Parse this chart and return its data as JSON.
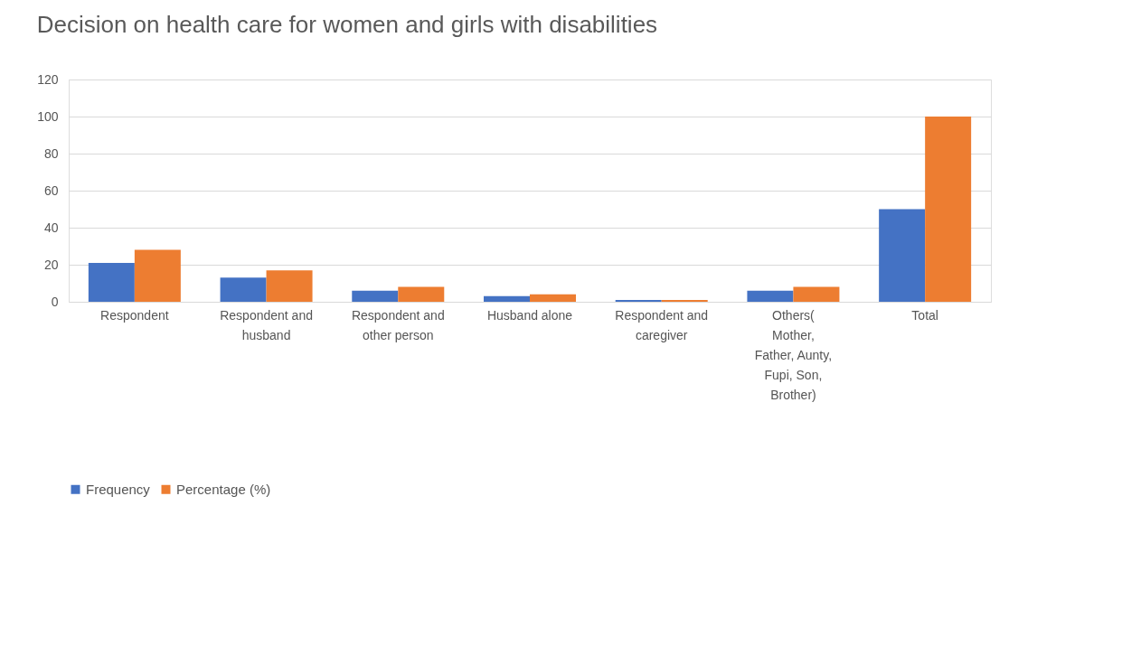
{
  "chart_data": {
    "type": "bar",
    "title": "Decision on health care for women and girls with disabilities",
    "categories": [
      "Respondent",
      "Respondent and husband",
      "Respondent and other person",
      "Husband alone",
      "Respondent and caregiver",
      "Others( Mother, Father, Aunty, Fupi, Son, Brother)",
      "Total"
    ],
    "series": [
      {
        "name": "Frequency",
        "color": "#4472c4",
        "values": [
          21,
          13,
          6,
          3,
          1,
          6,
          50
        ]
      },
      {
        "name": "Percentage (%)",
        "color": "#ed7d31",
        "values": [
          28,
          17,
          8,
          4,
          1,
          8,
          100
        ]
      }
    ],
    "ylim": [
      0,
      120
    ],
    "yticks": [
      0,
      20,
      40,
      60,
      80,
      100,
      120
    ],
    "grid": "y",
    "legend": "bottom"
  }
}
